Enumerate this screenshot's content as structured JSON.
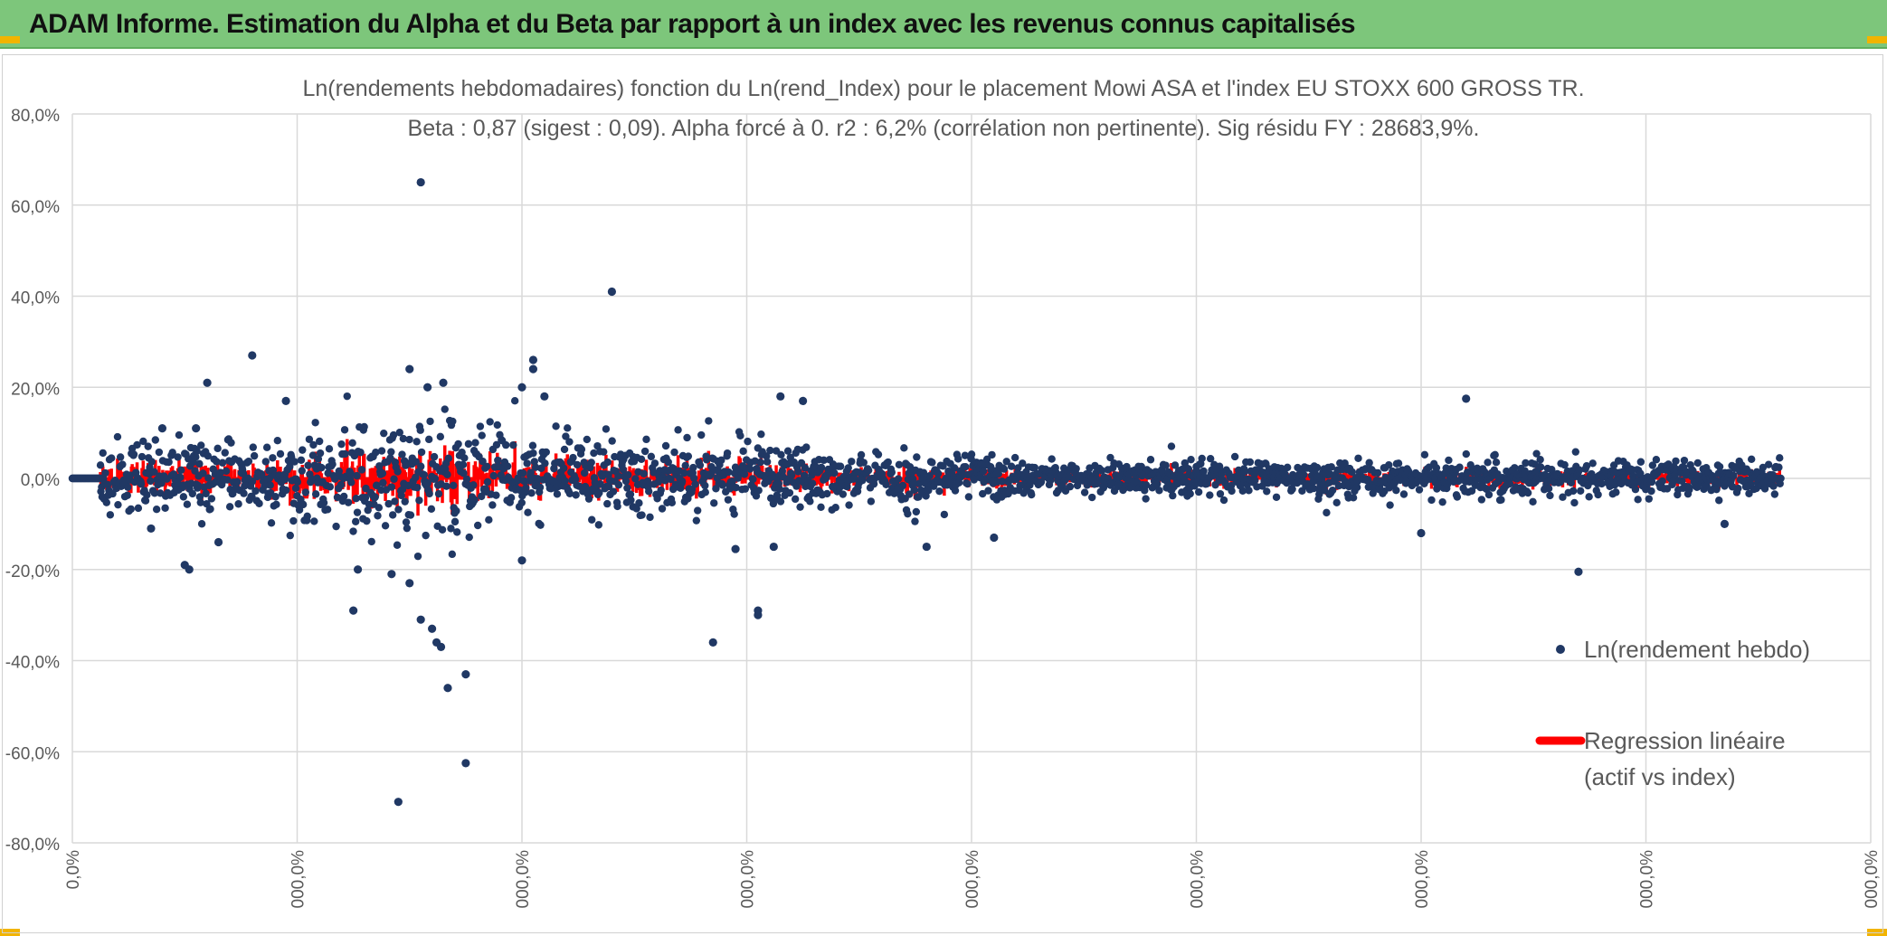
{
  "banner": {
    "title": "ADAM Informe. Estimation du Alpha et du Beta par rapport à un index avec les revenus connus capitalisés"
  },
  "colors": {
    "banner_bg": "#7dc67b",
    "scatter": "#203864",
    "regression": "#ff0000",
    "grid": "#d9d9d9",
    "corner_accent": "#f2b400"
  },
  "chart_data": {
    "type": "scatter",
    "title": "Ln(rendements hebdomadaires) fonction du Ln(rend_Index) pour le placement Mowi ASA et l'index EU STOXX 600 GROSS TR.",
    "subtitle": "Beta : 0,87 (sigest : 0,09). Alpha forcé à 0. r2 : 6,2% (corrélation non pertinente). Sig résidu FY : 28683,9%.",
    "ylim": [
      -80,
      80
    ],
    "y_ticks": [
      80,
      60,
      40,
      20,
      0,
      -20,
      -40,
      -60,
      -80
    ],
    "y_tick_labels": [
      "80,0%",
      "60,0%",
      "40,0%",
      "20,0%",
      "0,0%",
      "-20,0%",
      "-40,0%",
      "-60,0%",
      "-80,0%"
    ],
    "xlim": [
      0,
      8
    ],
    "x_ticks": [
      0,
      1,
      2,
      3,
      4,
      5,
      6,
      7,
      8
    ],
    "x_tick_labels": [
      "0,0%",
      "000,0%",
      "000,0%",
      "000,0%",
      "000,0%",
      "000,0%",
      "000,0%",
      "000,0%",
      "000,0%"
    ],
    "x_data_extent": [
      0,
      7.6
    ],
    "grid": true,
    "legend_position": "right",
    "series": [
      {
        "name": "Ln(rendement hebdo)",
        "kind": "markers",
        "notable_points": [
          [
            1.55,
            65
          ],
          [
            2.4,
            41
          ],
          [
            0.8,
            27
          ],
          [
            2.05,
            26
          ],
          [
            2.05,
            24
          ],
          [
            1.5,
            24
          ],
          [
            0.6,
            21
          ],
          [
            1.65,
            21
          ],
          [
            1.58,
            20
          ],
          [
            2.0,
            20
          ],
          [
            6.2,
            17.5
          ],
          [
            2.1,
            18
          ],
          [
            3.15,
            18
          ],
          [
            3.25,
            17
          ],
          [
            0.95,
            17
          ],
          [
            0.55,
            11
          ],
          [
            0.4,
            11
          ],
          [
            1.42,
            -21
          ],
          [
            1.5,
            -23
          ],
          [
            1.55,
            -31
          ],
          [
            1.6,
            -33
          ],
          [
            1.62,
            -36
          ],
          [
            1.64,
            -37
          ],
          [
            1.67,
            -46
          ],
          [
            1.75,
            -43
          ],
          [
            1.75,
            -62.5
          ],
          [
            1.45,
            -71
          ],
          [
            2.0,
            -18
          ],
          [
            0.5,
            -19
          ],
          [
            0.52,
            -20
          ],
          [
            3.05,
            -29
          ],
          [
            3.05,
            -30
          ],
          [
            2.85,
            -36
          ],
          [
            6.7,
            -20.5
          ],
          [
            2.95,
            -15.5
          ],
          [
            3.12,
            -15
          ],
          [
            1.25,
            -29
          ],
          [
            1.27,
            -20
          ],
          [
            3.8,
            -15
          ],
          [
            0.65,
            -14
          ],
          [
            0.35,
            -11
          ],
          [
            6.0,
            -12
          ],
          [
            7.35,
            -10
          ],
          [
            4.1,
            -13
          ]
        ]
      },
      {
        "name": "Regression linéaire\n(actif vs index)",
        "kind": "line",
        "beta": 0.87,
        "alpha": 0
      }
    ]
  }
}
